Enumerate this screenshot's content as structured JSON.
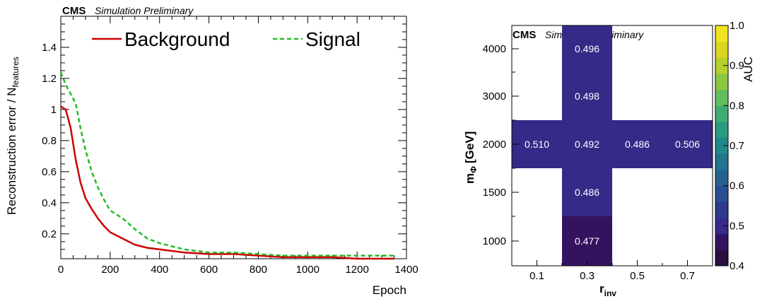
{
  "chart_data": [
    {
      "type": "line",
      "header": {
        "cms": "CMS",
        "tag": "Simulation Preliminary"
      },
      "xlabel": "Epoch",
      "ylabel_main": "Reconstruction error / N",
      "ylabel_sub": "features",
      "xlim": [
        0,
        1400
      ],
      "ylim": [
        0.04,
        1.6
      ],
      "xticks": [
        "0",
        "200",
        "400",
        "600",
        "800",
        "1000",
        "1200",
        "1400"
      ],
      "yticks": [
        "0.2",
        "0.4",
        "0.6",
        "0.8",
        "1",
        "1.2",
        "1.4"
      ],
      "legend_placement": "top",
      "series": [
        {
          "name": "Background",
          "color": "#cc0000",
          "style": "solid",
          "x": [
            0,
            20,
            40,
            60,
            80,
            100,
            125,
            150,
            175,
            200,
            250,
            300,
            350,
            400,
            500,
            600,
            700,
            800,
            900,
            1000,
            1100,
            1200,
            1300,
            1350
          ],
          "y": [
            1.02,
            1.0,
            0.88,
            0.68,
            0.53,
            0.43,
            0.36,
            0.3,
            0.25,
            0.21,
            0.17,
            0.13,
            0.11,
            0.1,
            0.08,
            0.07,
            0.07,
            0.06,
            0.05,
            0.05,
            0.05,
            0.04,
            0.04,
            0.04
          ]
        },
        {
          "name": "Signal",
          "color": "#22bb22",
          "style": "dashed",
          "x": [
            0,
            20,
            40,
            60,
            80,
            100,
            125,
            150,
            175,
            200,
            250,
            300,
            350,
            400,
            500,
            600,
            700,
            800,
            900,
            1000,
            1100,
            1200,
            1300,
            1350
          ],
          "y": [
            1.24,
            1.16,
            1.1,
            1.04,
            0.88,
            0.74,
            0.6,
            0.5,
            0.42,
            0.35,
            0.3,
            0.23,
            0.17,
            0.14,
            0.1,
            0.08,
            0.08,
            0.07,
            0.06,
            0.06,
            0.06,
            0.06,
            0.06,
            0.06
          ]
        }
      ]
    },
    {
      "type": "heatmap",
      "header": {
        "cms": "CMS",
        "tag": "Simulation Preliminary"
      },
      "xlabel_main": "r",
      "xlabel_sub": "inv",
      "ylabel_main": "m",
      "ylabel_sub": "Φ",
      "ylabel_unit": "[GeV]",
      "x_categories": [
        "0.1",
        "0.3",
        "0.5",
        "0.7"
      ],
      "y_categories": [
        "1000",
        "1500",
        "2000",
        "3000",
        "4000"
      ],
      "cells": [
        {
          "x": "0.3",
          "y": "1000",
          "value": 0.477,
          "label": "0.477"
        },
        {
          "x": "0.3",
          "y": "1500",
          "value": 0.486,
          "label": "0.486"
        },
        {
          "x": "0.1",
          "y": "2000",
          "value": 0.51,
          "label": "0.510"
        },
        {
          "x": "0.3",
          "y": "2000",
          "value": 0.492,
          "label": "0.492"
        },
        {
          "x": "0.5",
          "y": "2000",
          "value": 0.486,
          "label": "0.486"
        },
        {
          "x": "0.7",
          "y": "2000",
          "value": 0.506,
          "label": "0.506"
        },
        {
          "x": "0.3",
          "y": "3000",
          "value": 0.498,
          "label": "0.498"
        },
        {
          "x": "0.3",
          "y": "4000",
          "value": 0.496,
          "label": "0.496"
        }
      ],
      "colorbar": {
        "label": "AUC",
        "range": [
          0.4,
          1.0
        ],
        "ticks": [
          "0.4",
          "0.5",
          "0.6",
          "0.7",
          "0.8",
          "0.9",
          "1.0"
        ],
        "colors": [
          "#2a0f40",
          "#33135f",
          "#352a87",
          "#2e3a8c",
          "#2a4e8f",
          "#26628e",
          "#21758d",
          "#1f888a",
          "#2a9b82",
          "#3fad73",
          "#62bd5c",
          "#8ac840",
          "#b5cf2b",
          "#dad520",
          "#f2e21f"
        ]
      }
    }
  ]
}
